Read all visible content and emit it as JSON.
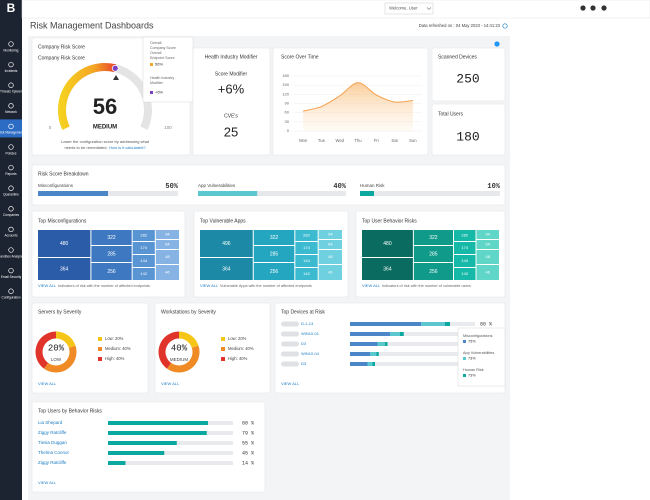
{
  "sidebar": {
    "logo": "B",
    "active_index": 4,
    "items": [
      "Monitoring",
      "Incidents",
      "Threats Xplorer",
      "Network",
      "Risk Management",
      "Policies",
      "Reports",
      "Quarantine",
      "Companies",
      "Accounts",
      "Sandbox Analyzer",
      "Email Security",
      "Configuration"
    ]
  },
  "topbar": {
    "user": "Welcome, User"
  },
  "header": {
    "title": "Risk Management Dashboards",
    "refreshed": "Data refreshed on : 04 May 2023 - 14:41:23"
  },
  "company_score": {
    "title": "Company Risk Score",
    "subtitle": "Company Risk Score",
    "value": 56,
    "level": "MEDIUM",
    "min": 0,
    "max": 100,
    "note": [
      "Lower the configuration score by addressing what",
      "needs to be remediated."
    ],
    "link": "How is it calculated?",
    "tooltip": {
      "label1": [
        "Overall",
        "Company Score",
        "Overall",
        "Endpoint Score"
      ],
      "value1": "56%",
      "color1": "#f5a623",
      "label2": [
        "Health Industry",
        "Modifier"
      ],
      "value2": "+6%",
      "color2": "#7b3fc4"
    }
  },
  "health_modifier": {
    "title": "Health Industry Modifier",
    "label": "Score Modifier",
    "value": "+6%",
    "cve_label": "CVE's",
    "cve_value": 25
  },
  "score_over_time": {
    "type": "area",
    "title": "Score Over Time",
    "categories": [
      "Mon",
      "Tue",
      "Wed",
      "Thu",
      "Fri",
      "Sat",
      "Sun"
    ],
    "values": [
      65,
      80,
      115,
      158,
      118,
      95,
      100
    ],
    "color": "#f5a04a",
    "ylim": [
      0,
      180
    ],
    "yticks": [
      0,
      30,
      60,
      90,
      120,
      150,
      180
    ],
    "grid": true
  },
  "scanned_devices": {
    "title": "Scanned Devices",
    "value": 250
  },
  "total_users": {
    "title": "Total Users",
    "value": 180
  },
  "breakdown": {
    "title": "Risk Score Breakdown",
    "items": [
      {
        "name": "Misconfigurations",
        "value": 50,
        "value_label": "50%",
        "color": "#4a86c8"
      },
      {
        "name": "App Vulnerabilities",
        "value": 40,
        "value_label": "40%",
        "color": "#5bc8d0"
      },
      {
        "name": "Human Risk",
        "value": 10,
        "value_label": "10%",
        "color": "#0aa89e"
      }
    ]
  },
  "treemaps": [
    {
      "title": "Top Misconfigurations",
      "values": [
        480,
        364,
        322,
        285,
        256,
        282,
        174,
        144,
        142,
        94,
        64,
        48,
        46
      ],
      "colors": [
        "#2b5ca8",
        "#3d78c0",
        "#5a95d3",
        "#86b3e3"
      ],
      "link": "VIEW ALL",
      "caption": "Indicators of risk with the number of affected endpoints"
    },
    {
      "title": "Top Vulnerable Apps",
      "values": [
        496,
        364,
        322,
        285,
        256,
        282,
        174,
        144,
        142,
        94,
        64,
        48,
        46
      ],
      "colors": [
        "#1c8aa6",
        "#25a6c0",
        "#3cbad0",
        "#6fd0e0"
      ],
      "link": "VIEW ALL",
      "caption": "Vulnerable Apps with the number of affected endpoints"
    },
    {
      "title": "Top User Behavior Risks",
      "values": [
        480,
        364,
        322,
        285,
        256,
        282,
        174,
        144,
        142,
        94,
        64,
        48,
        46
      ],
      "colors": [
        "#0a6b60",
        "#0f9a8a",
        "#16b8a8",
        "#5fd6c8"
      ],
      "link": "VIEW ALL",
      "caption": "Indicators of risk with the number of vulnerable users"
    }
  ],
  "severity": [
    {
      "title": "Servers by Severity",
      "center_value": "20%",
      "center_level": "LOW",
      "segments": [
        {
          "label": "Low: 20%",
          "value": 20,
          "color": "#f5c518"
        },
        {
          "label": "Medium: 40%",
          "value": 40,
          "color": "#f08a24"
        },
        {
          "label": "High: 40%",
          "value": 40,
          "color": "#e0342b"
        }
      ],
      "link": "VIEW ALL"
    },
    {
      "title": "Workstations by Severity",
      "center_value": "40%",
      "center_level": "MEDIUM",
      "segments": [
        {
          "label": "Low: 20%",
          "value": 20,
          "color": "#f5c518"
        },
        {
          "label": "Medium: 40%",
          "value": 40,
          "color": "#f08a24"
        },
        {
          "label": "High: 40%",
          "value": 40,
          "color": "#e0342b"
        }
      ],
      "link": "VIEW ALL"
    }
  ],
  "devices": {
    "title": "Top Devices at Risk",
    "colors": [
      "#4a86c8",
      "#5bc8d0",
      "#0aa89e"
    ],
    "rows": [
      {
        "name": "D-1-13",
        "values": [
          57,
          19,
          4
        ],
        "value_label": "80 %"
      },
      {
        "name": "WIN10-01",
        "values": [
          32,
          8,
          3
        ]
      },
      {
        "name": "D3",
        "values": [
          22,
          6,
          2
        ]
      },
      {
        "name": "WIN10-04",
        "values": [
          16,
          5,
          2
        ]
      },
      {
        "name": "D3",
        "values": [
          14,
          4,
          2
        ]
      }
    ],
    "tooltip": [
      {
        "name": "Misconfigurations",
        "value": "75%"
      },
      {
        "name": "App Vulnerabilities",
        "value": "73%"
      },
      {
        "name": "Human Risk",
        "value": "73%"
      }
    ],
    "link": "VIEW ALL"
  },
  "users": {
    "title": "Top Users by Behavior Risks",
    "color": "#0aa89e",
    "rows": [
      {
        "name": "Lia Shepard",
        "value": 80,
        "value_label": "80 %"
      },
      {
        "name": "Ziggy Ratcliffe",
        "value": 79,
        "value_label": "79 %"
      },
      {
        "name": "Tiesia Duggan",
        "value": 55,
        "value_label": "55 %"
      },
      {
        "name": "Thelma Connor",
        "value": 45,
        "value_label": "45 %"
      },
      {
        "name": "Ziggy Ratcliffe",
        "value": 14,
        "value_label": "14 %"
      }
    ],
    "link": "VIEW ALL"
  }
}
